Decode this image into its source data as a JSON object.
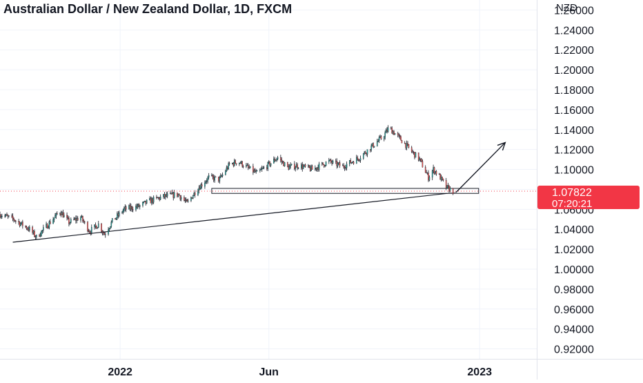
{
  "chart_data": {
    "type": "candlestick",
    "title": "Australian Dollar / New Zealand Dollar, 1D, FXCM",
    "y_unit": "NZD",
    "x_range": [
      "2021-09-01",
      "2023-02-28"
    ],
    "ylim": [
      0.91,
      1.27
    ],
    "y_ticks": [
      "1.26000",
      "1.24000",
      "1.22000",
      "1.20000",
      "1.18000",
      "1.16000",
      "1.14000",
      "1.12000",
      "1.10000",
      "1.08000",
      "1.06000",
      "1.04000",
      "1.02000",
      "1.00000",
      "0.98000",
      "0.96000",
      "0.94000",
      "0.92000"
    ],
    "x_ticks": [
      {
        "label": "2022",
        "date": "2022-01-01"
      },
      {
        "label": "Jun",
        "date": "2022-06-01"
      },
      {
        "label": "2023",
        "date": "2023-01-01"
      }
    ],
    "grid": true,
    "price_label": {
      "value": 1.07822,
      "countdown": "07:20:21",
      "color": "#f23645"
    },
    "colors": {
      "up": "#26a69a",
      "down": "#ef5350",
      "wick": "#131722"
    },
    "path": [
      [
        "2021-09-01",
        1.055
      ],
      [
        "2021-09-15",
        1.05
      ],
      [
        "2021-10-01",
        1.04
      ],
      [
        "2021-10-08",
        1.032
      ],
      [
        "2021-10-20",
        1.045
      ],
      [
        "2021-11-01",
        1.058
      ],
      [
        "2021-11-10",
        1.047
      ],
      [
        "2021-11-22",
        1.052
      ],
      [
        "2021-12-01",
        1.038
      ],
      [
        "2021-12-10",
        1.045
      ],
      [
        "2021-12-16",
        1.035
      ],
      [
        "2021-12-24",
        1.048
      ],
      [
        "2022-01-05",
        1.06
      ],
      [
        "2022-01-20",
        1.063
      ],
      [
        "2022-01-30",
        1.068
      ],
      [
        "2022-02-15",
        1.073
      ],
      [
        "2022-03-01",
        1.075
      ],
      [
        "2022-03-10",
        1.066
      ],
      [
        "2022-03-20",
        1.08
      ],
      [
        "2022-04-01",
        1.092
      ],
      [
        "2022-04-12",
        1.09
      ],
      [
        "2022-04-22",
        1.105
      ],
      [
        "2022-05-01",
        1.108
      ],
      [
        "2022-05-10",
        1.102
      ],
      [
        "2022-05-20",
        1.096
      ],
      [
        "2022-06-01",
        1.105
      ],
      [
        "2022-06-10",
        1.112
      ],
      [
        "2022-06-20",
        1.102
      ],
      [
        "2022-07-01",
        1.104
      ],
      [
        "2022-07-15",
        1.1
      ],
      [
        "2022-08-01",
        1.108
      ],
      [
        "2022-08-15",
        1.103
      ],
      [
        "2022-09-01",
        1.112
      ],
      [
        "2022-09-10",
        1.12
      ],
      [
        "2022-09-25",
        1.133
      ],
      [
        "2022-10-01",
        1.142
      ],
      [
        "2022-10-08",
        1.135
      ],
      [
        "2022-10-15",
        1.128
      ],
      [
        "2022-10-25",
        1.117
      ],
      [
        "2022-11-01",
        1.11
      ],
      [
        "2022-11-10",
        1.092
      ],
      [
        "2022-11-15",
        1.1
      ],
      [
        "2022-11-20",
        1.095
      ],
      [
        "2022-11-28",
        1.082
      ],
      [
        "2022-12-05",
        1.078
      ]
    ],
    "annotations": [
      {
        "type": "trendline",
        "from": [
          "2021-09-14",
          1.027
        ],
        "to": [
          "2022-12-08",
          1.077
        ]
      },
      {
        "type": "rectangle",
        "from": [
          "2022-04-04",
          1.081
        ],
        "to": [
          "2022-12-31",
          1.076
        ]
      },
      {
        "type": "arrow",
        "from": [
          "2022-12-08",
          1.077
        ],
        "to": [
          "2023-01-27",
          1.127
        ]
      }
    ]
  }
}
